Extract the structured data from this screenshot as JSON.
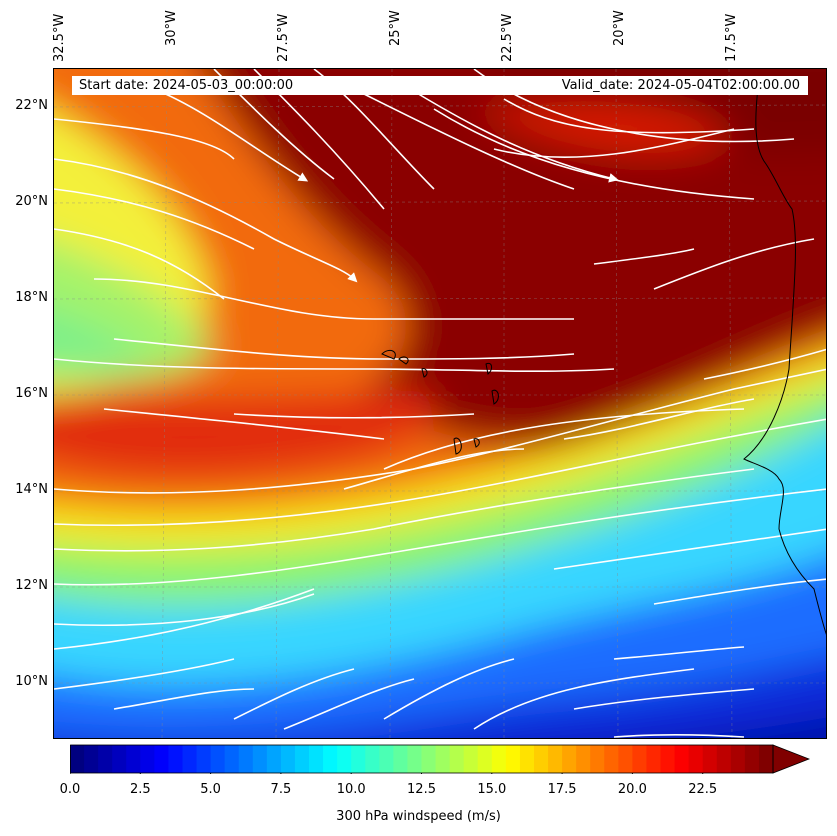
{
  "map": {
    "title_start": "Start date: 2024-05-03_00:00:00",
    "title_valid": "Valid_date: 2024-05-04T02:00:00.00",
    "lon_labels": [
      "32.5°W",
      "30°W",
      "27.5°W",
      "25°W",
      "22.5°W",
      "20°W",
      "17.5°W"
    ],
    "lat_labels": [
      "22°N",
      "20°N",
      "18°N",
      "16°N",
      "14°N",
      "12°N",
      "10°N"
    ],
    "extent": {
      "lon_min": -32.5,
      "lon_max": -15.1,
      "lat_min": 8.9,
      "lat_max": 22.8
    }
  },
  "colorbar": {
    "label": "300 hPa windspeed (m/s)",
    "ticks": [
      "0.0",
      "2.5",
      "5.0",
      "7.5",
      "10.0",
      "12.5",
      "15.0",
      "17.5",
      "20.0",
      "22.5"
    ],
    "min": 0,
    "max": 25,
    "extend": "max"
  }
}
